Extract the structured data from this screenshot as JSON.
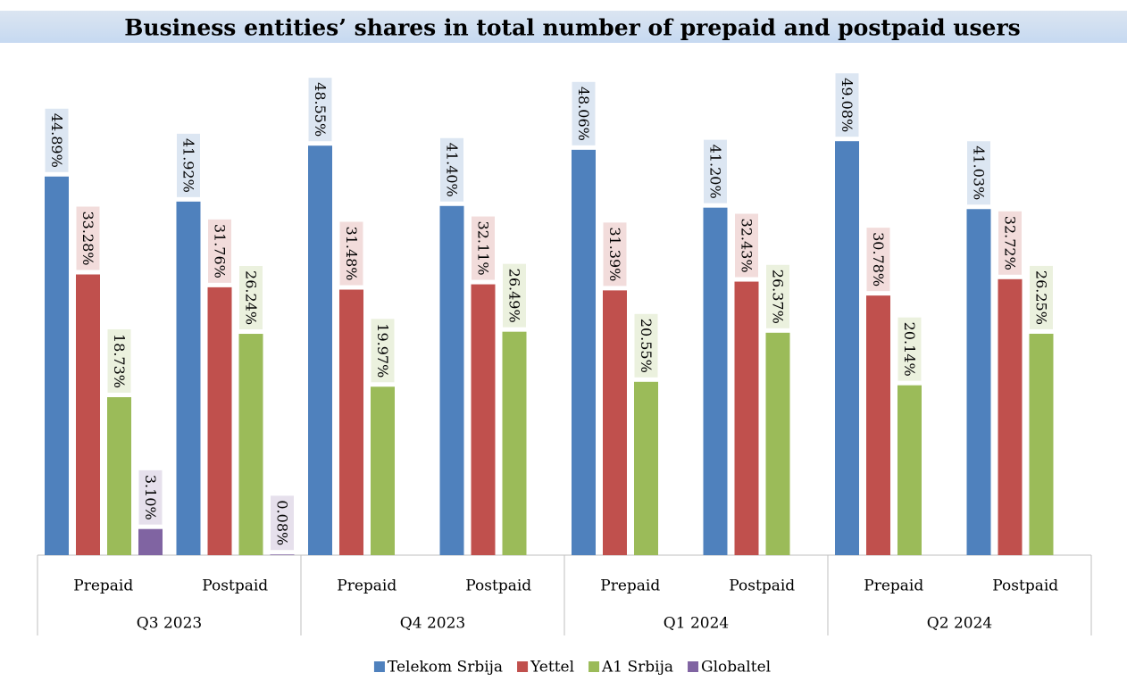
{
  "chart_data": {
    "type": "bar",
    "title": "Business entities’ shares in total number of prepaid and postpaid users",
    "categories": [
      "Prepaid",
      "Postpaid",
      "Prepaid",
      "Postpaid",
      "Prepaid",
      "Postpaid",
      "Prepaid",
      "Postpaid"
    ],
    "groups": [
      "Q3 2023",
      "Q4 2023",
      "Q1 2024",
      "Q2 2024"
    ],
    "series": [
      {
        "name": "Telekom Srbija",
        "color": "#4f81bd",
        "label_color": "#dce6f2",
        "values": [
          44.89,
          41.92,
          48.55,
          41.4,
          48.06,
          41.2,
          49.08,
          41.03
        ],
        "value_labels": [
          "44.89%",
          "41.92%",
          "48.55%",
          "41.40%",
          "48.06%",
          "41.20%",
          "49.08%",
          "41.03%"
        ]
      },
      {
        "name": "Yettel",
        "color": "#c0504d",
        "label_color": "#f2dcdb",
        "values": [
          33.28,
          31.76,
          31.48,
          32.11,
          31.39,
          32.43,
          30.78,
          32.72
        ],
        "value_labels": [
          "33.28%",
          "31.76%",
          "31.48%",
          "32.11%",
          "31.39%",
          "32.43%",
          "30.78%",
          "32.72%"
        ]
      },
      {
        "name": "A1 Srbija",
        "color": "#9bbb59",
        "label_color": "#ebf1de",
        "values": [
          18.73,
          26.24,
          19.97,
          26.49,
          20.55,
          26.37,
          20.14,
          26.25
        ],
        "value_labels": [
          "18.73%",
          "26.24%",
          "19.97%",
          "26.49%",
          "20.55%",
          "26.37%",
          "20.14%",
          "26.25%"
        ]
      },
      {
        "name": "Globaltel",
        "color": "#8064a2",
        "label_color": "#e6e0ec",
        "values": [
          3.1,
          0.08,
          null,
          null,
          null,
          null,
          null,
          null
        ],
        "value_labels": [
          "3.10%",
          "0.08%",
          null,
          null,
          null,
          null,
          null,
          null
        ]
      }
    ],
    "legend": "bottom"
  }
}
